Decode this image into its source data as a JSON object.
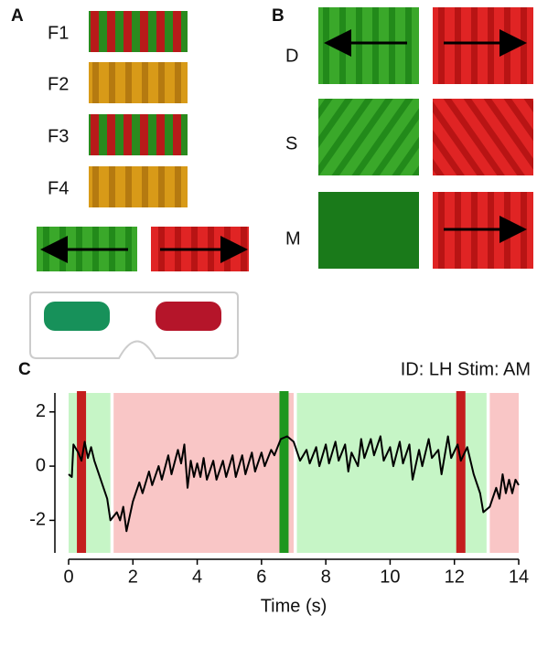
{
  "panel_a": {
    "label": "A",
    "rows": [
      "F1",
      "F2",
      "F3",
      "F4"
    ]
  },
  "panel_b": {
    "label": "B",
    "rows": [
      "D",
      "S",
      "M"
    ]
  },
  "chart_data": {
    "type": "line",
    "label": "C",
    "annotation": "ID: LH Stim: AM",
    "x_label": "Time (s)",
    "xlim": [
      0,
      14
    ],
    "xticks": [
      0,
      2,
      4,
      6,
      8,
      10,
      12,
      14
    ],
    "ylim": [
      -3.2,
      2.7
    ],
    "yticks": [
      -2,
      0,
      2
    ],
    "color": "#000000",
    "regions": [
      {
        "start": 0,
        "end": 1.3,
        "color": "#c6f5c6"
      },
      {
        "start": 1.4,
        "end": 7.0,
        "color": "#f9c6c6"
      },
      {
        "start": 7.1,
        "end": 13.0,
        "color": "#c6f5c6"
      },
      {
        "start": 13.1,
        "end": 14,
        "color": "#f9c6c6"
      }
    ],
    "markers": [
      {
        "x": 0.4,
        "color": "#c41e1e"
      },
      {
        "x": 6.7,
        "color": "#1e961e"
      },
      {
        "x": 12.2,
        "color": "#c41e1e"
      }
    ],
    "x": [
      0.0,
      0.1,
      0.15,
      0.3,
      0.4,
      0.5,
      0.6,
      0.7,
      0.8,
      1.0,
      1.2,
      1.3,
      1.5,
      1.6,
      1.7,
      1.8,
      2.0,
      2.2,
      2.3,
      2.5,
      2.6,
      2.8,
      2.9,
      3.1,
      3.2,
      3.4,
      3.5,
      3.6,
      3.7,
      3.8,
      3.9,
      4.0,
      4.1,
      4.2,
      4.3,
      4.5,
      4.6,
      4.8,
      4.9,
      5.1,
      5.2,
      5.4,
      5.5,
      5.7,
      5.8,
      6.0,
      6.1,
      6.3,
      6.4,
      6.6,
      6.8,
      7.0,
      7.2,
      7.4,
      7.5,
      7.7,
      7.8,
      8.0,
      8.1,
      8.3,
      8.4,
      8.6,
      8.7,
      8.8,
      9.0,
      9.1,
      9.2,
      9.4,
      9.5,
      9.7,
      9.8,
      10.0,
      10.1,
      10.3,
      10.4,
      10.6,
      10.7,
      10.9,
      11.0,
      11.2,
      11.3,
      11.5,
      11.6,
      11.8,
      11.9,
      12.1,
      12.2,
      12.4,
      12.6,
      12.8,
      12.9,
      13.1,
      13.3,
      13.4,
      13.5,
      13.6,
      13.7,
      13.8,
      13.9,
      14.0
    ],
    "values": [
      -0.3,
      -0.4,
      0.8,
      0.5,
      0.2,
      0.9,
      0.3,
      0.7,
      0.2,
      -0.5,
      -1.2,
      -2.0,
      -1.7,
      -2.0,
      -1.5,
      -2.4,
      -1.3,
      -0.6,
      -1.0,
      -0.2,
      -0.7,
      0.0,
      -0.5,
      0.4,
      -0.3,
      0.6,
      0.1,
      0.8,
      -0.8,
      0.2,
      -0.4,
      0.1,
      -0.4,
      0.3,
      -0.5,
      0.2,
      -0.5,
      0.2,
      -0.4,
      0.4,
      -0.4,
      0.4,
      -0.3,
      0.5,
      -0.2,
      0.5,
      0.0,
      0.6,
      0.4,
      1.0,
      1.1,
      0.9,
      0.2,
      0.6,
      0.1,
      0.7,
      0.0,
      0.8,
      0.1,
      0.9,
      0.2,
      0.8,
      -0.2,
      0.5,
      0.0,
      1.0,
      0.3,
      1.0,
      0.4,
      1.1,
      0.2,
      0.7,
      0.0,
      0.9,
      0.1,
      0.8,
      -0.5,
      0.6,
      0.0,
      1.0,
      0.3,
      0.6,
      -0.3,
      1.1,
      0.3,
      0.8,
      0.2,
      0.7,
      -0.3,
      -1.0,
      -1.7,
      -1.5,
      -0.8,
      -1.2,
      -0.3,
      -1.0,
      -0.5,
      -1.0,
      -0.5,
      -0.7
    ]
  }
}
